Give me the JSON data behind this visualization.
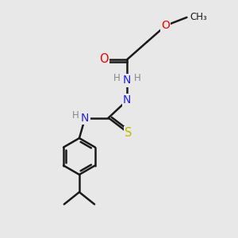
{
  "background_color": "#e8e8e8",
  "bond_color": "#1a1a1a",
  "O_color": "#ee0000",
  "N_color": "#2222dd",
  "S_color": "#bbbb00",
  "H_color": "#888888",
  "figsize": [
    3.0,
    3.0
  ],
  "dpi": 100,
  "xlim": [
    0,
    10
  ],
  "ylim": [
    0,
    10
  ]
}
